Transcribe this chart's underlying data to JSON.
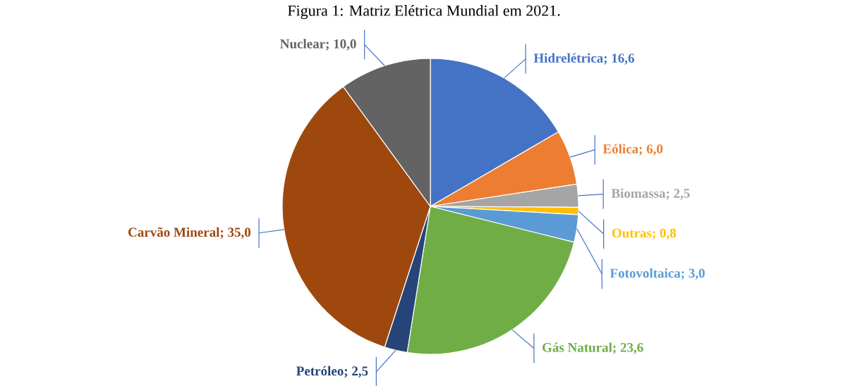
{
  "chart_data": {
    "type": "pie",
    "title": "Figura 1: Matriz Elétrica Mundial em 2021.",
    "categories": [
      "Hidrelétrica",
      "Eólica",
      "Biomassa",
      "Outras",
      "Fotovoltaica",
      "Gás Natural",
      "Petróleo",
      "Carvão Mineral",
      "Nuclear"
    ],
    "values": [
      16.6,
      6.0,
      2.5,
      0.8,
      3.0,
      23.6,
      2.5,
      35.0,
      10.0
    ],
    "value_labels": [
      "; 16,6",
      "; 6,0",
      "; 2,5",
      "; 0,8",
      "; 3,0",
      "; 23,6",
      "; 2,5",
      "; 35,0",
      "; 10,0"
    ],
    "colors": [
      "#4472c4",
      "#ed7d31",
      "#a5a5a5",
      "#ffc000",
      "#5b9bd5",
      "#70ad47",
      "#264478",
      "#9e480e",
      "#636363"
    ]
  }
}
